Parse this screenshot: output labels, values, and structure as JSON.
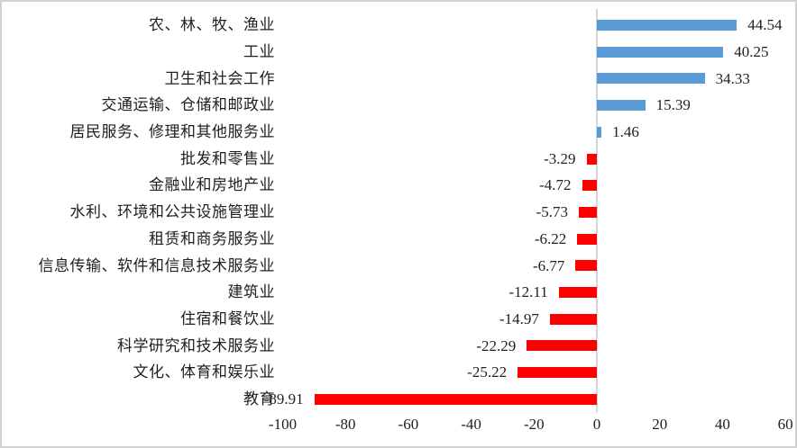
{
  "chart_data": {
    "type": "bar",
    "orientation": "horizontal",
    "title": "",
    "xlabel": "",
    "ylabel": "",
    "categories": [
      "农、林、牧、渔业",
      "工业",
      "卫生和社会工作",
      "交通运输、仓储和邮政业",
      "居民服务、修理和其他服务业",
      "批发和零售业",
      "金融业和房地产业",
      "水利、环境和公共设施管理业",
      "租赁和商务服务业",
      "信息传输、软件和信息技术服务业",
      "建筑业",
      "住宿和餐饮业",
      "科学研究和技术服务业",
      "文化、体育和娱乐业",
      "教育"
    ],
    "values": [
      44.54,
      40.25,
      34.33,
      15.39,
      1.46,
      -3.29,
      -4.72,
      -5.73,
      -6.22,
      -6.77,
      -12.11,
      -14.97,
      -22.29,
      -25.22,
      -89.91
    ],
    "value_labels": [
      "44.54",
      "40.25",
      "34.33",
      "15.39",
      "1.46",
      "-3.29",
      "-4.72",
      "-5.73",
      "-6.22",
      "-6.77",
      "-12.11",
      "-14.97",
      "-22.29",
      "-25.22",
      "-89.91"
    ],
    "x_ticks": [
      -100,
      -80,
      -60,
      -40,
      -20,
      0,
      20,
      40,
      60
    ],
    "x_tick_labels": [
      "-100",
      "-80",
      "-60",
      "-40",
      "-20",
      "0",
      "20",
      "40",
      "60"
    ],
    "xlim": [
      -100,
      60
    ],
    "grid": false,
    "legend": false,
    "data_labels_shown": true,
    "colors": {
      "positive_bar": "#5B9BD5",
      "negative_bar": "#FF0000",
      "axis_line": "#D6D6D6",
      "text": "#1F1F1F",
      "frame_border": "#D2D2D2",
      "background": "#FFFFFF"
    }
  }
}
